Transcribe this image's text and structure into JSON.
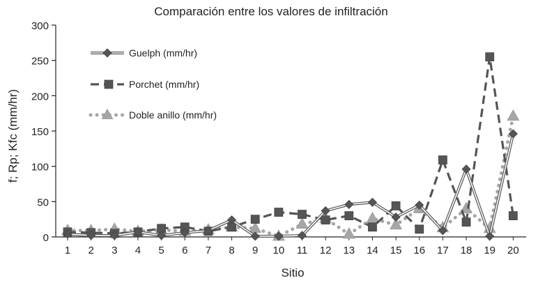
{
  "chart_data": {
    "type": "line",
    "title": "Comparación entre los valores de infiltración",
    "xlabel": "Sitio",
    "ylabel": "f; Rp; Kfc (mm/hr)",
    "x": [
      1,
      2,
      3,
      4,
      5,
      6,
      7,
      8,
      9,
      10,
      11,
      12,
      13,
      14,
      15,
      16,
      17,
      18,
      19,
      20
    ],
    "xticks": [
      "1",
      "2",
      "3",
      "4",
      "5",
      "6",
      "7",
      "8",
      "9",
      "10",
      "11",
      "12",
      "13",
      "14",
      "15",
      "16",
      "17",
      "18",
      "19",
      "20"
    ],
    "ylim": [
      0,
      300
    ],
    "yticks": [
      "0",
      "50",
      "100",
      "150",
      "200",
      "250",
      "300"
    ],
    "grid": false,
    "legend_position": "top-left",
    "series": [
      {
        "name": "Guelph (mm/hr)",
        "style": "double-line-diamond",
        "color": "#555555",
        "values": [
          4,
          2,
          2,
          7,
          2,
          6,
          9,
          24,
          1,
          1,
          2,
          37,
          46,
          49,
          28,
          45,
          9,
          96,
          1,
          146
        ]
      },
      {
        "name": "Porchet (mm/hr)",
        "style": "dashed-square",
        "color": "#555555",
        "values": [
          7,
          6,
          5,
          7,
          12,
          14,
          8,
          14,
          25,
          35,
          32,
          24,
          30,
          14,
          44,
          11,
          109,
          21,
          255,
          30
        ]
      },
      {
        "name": "Doble anillo (mm/hr)",
        "style": "dotted-triangle",
        "color": "#a6a6a6",
        "values": [
          9,
          9,
          11,
          8,
          10,
          8,
          10,
          14,
          12,
          1,
          18,
          26,
          4,
          26,
          17,
          40,
          13,
          40,
          12,
          171
        ]
      }
    ]
  }
}
